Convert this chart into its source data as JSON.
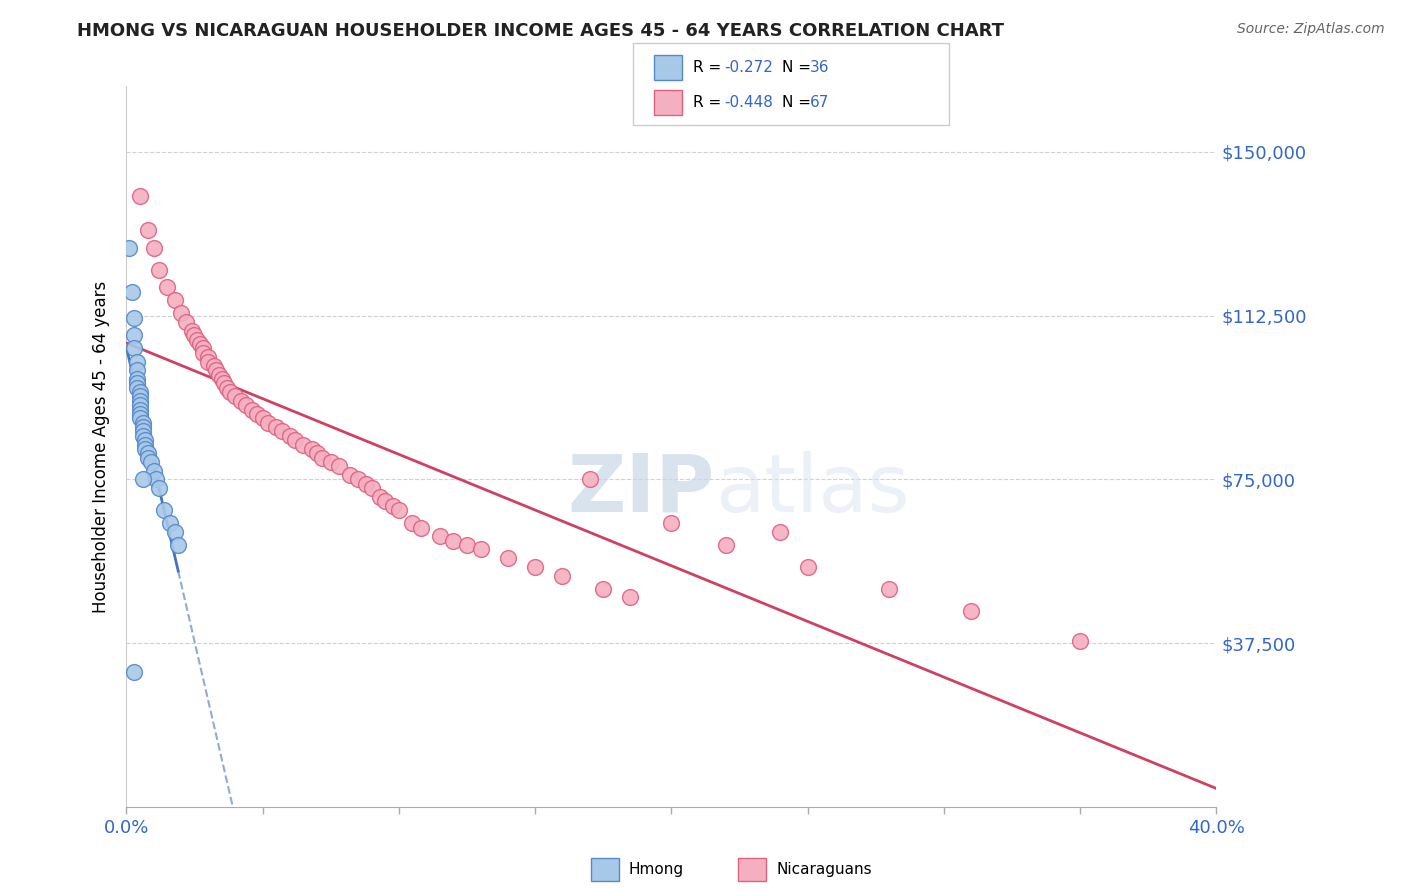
{
  "title": "HMONG VS NICARAGUAN HOUSEHOLDER INCOME AGES 45 - 64 YEARS CORRELATION CHART",
  "source": "Source: ZipAtlas.com",
  "ylabel": "Householder Income Ages 45 - 64 years",
  "xlim": [
    0.0,
    0.4
  ],
  "ylim": [
    0,
    165000
  ],
  "yticks": [
    0,
    37500,
    75000,
    112500,
    150000
  ],
  "ytick_labels": [
    "",
    "$37,500",
    "$75,000",
    "$112,500",
    "$150,000"
  ],
  "hmong_color": "#a8c8e8",
  "nicaraguan_color": "#f4b0c0",
  "hmong_edge_color": "#5588cc",
  "nicaraguan_edge_color": "#e06080",
  "hmong_line_color": "#4472c4",
  "nicaraguan_line_color": "#d04060",
  "watermark_color": "#c8d8e8",
  "hmong_x": [
    0.001,
    0.002,
    0.003,
    0.003,
    0.003,
    0.004,
    0.004,
    0.004,
    0.004,
    0.004,
    0.005,
    0.005,
    0.005,
    0.005,
    0.005,
    0.005,
    0.005,
    0.006,
    0.006,
    0.006,
    0.006,
    0.007,
    0.007,
    0.007,
    0.008,
    0.008,
    0.009,
    0.01,
    0.011,
    0.012,
    0.014,
    0.016,
    0.018,
    0.019,
    0.003,
    0.006
  ],
  "hmong_y": [
    128000,
    118000,
    112000,
    108000,
    105000,
    102000,
    100000,
    98000,
    97000,
    96000,
    95000,
    94000,
    93000,
    92000,
    91000,
    90000,
    89000,
    88000,
    87000,
    86000,
    85000,
    84000,
    83000,
    82000,
    81000,
    80000,
    79000,
    77000,
    75000,
    73000,
    68000,
    65000,
    63000,
    60000,
    31000,
    75000
  ],
  "nicaraguan_x": [
    0.005,
    0.008,
    0.01,
    0.012,
    0.015,
    0.018,
    0.02,
    0.022,
    0.024,
    0.025,
    0.026,
    0.027,
    0.028,
    0.028,
    0.03,
    0.03,
    0.032,
    0.033,
    0.034,
    0.035,
    0.036,
    0.037,
    0.038,
    0.04,
    0.042,
    0.044,
    0.046,
    0.048,
    0.05,
    0.052,
    0.055,
    0.057,
    0.06,
    0.062,
    0.065,
    0.068,
    0.07,
    0.072,
    0.075,
    0.078,
    0.082,
    0.085,
    0.088,
    0.09,
    0.093,
    0.095,
    0.098,
    0.1,
    0.105,
    0.108,
    0.115,
    0.12,
    0.125,
    0.13,
    0.14,
    0.15,
    0.16,
    0.175,
    0.185,
    0.2,
    0.22,
    0.25,
    0.28,
    0.31,
    0.35,
    0.17,
    0.24
  ],
  "nicaraguan_y": [
    140000,
    132000,
    128000,
    123000,
    119000,
    116000,
    113000,
    111000,
    109000,
    108000,
    107000,
    106000,
    105000,
    104000,
    103000,
    102000,
    101000,
    100000,
    99000,
    98000,
    97000,
    96000,
    95000,
    94000,
    93000,
    92000,
    91000,
    90000,
    89000,
    88000,
    87000,
    86000,
    85000,
    84000,
    83000,
    82000,
    81000,
    80000,
    79000,
    78000,
    76000,
    75000,
    74000,
    73000,
    71000,
    70000,
    69000,
    68000,
    65000,
    64000,
    62000,
    61000,
    60000,
    59000,
    57000,
    55000,
    53000,
    50000,
    48000,
    65000,
    60000,
    55000,
    50000,
    45000,
    38000,
    75000,
    63000
  ]
}
